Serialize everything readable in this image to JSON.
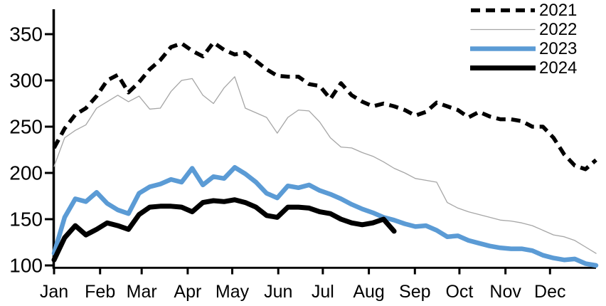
{
  "chart_data": {
    "type": "line",
    "title": "",
    "sampling": "weekly",
    "grid": false,
    "x_axis": {
      "tick_labels": [
        "Jan",
        "Feb",
        "Mar",
        "Apr",
        "May",
        "Jun",
        "Jul",
        "Aug",
        "Sep",
        "Oct",
        "Nov",
        "Dec"
      ],
      "month_start_days": [
        0,
        31,
        59,
        90,
        120,
        151,
        181,
        212,
        243,
        273,
        304,
        334
      ],
      "days_in_year": 365
    },
    "y_axis": {
      "ticks": [
        100,
        150,
        200,
        250,
        300,
        350
      ],
      "tick_labels": [
        "100",
        "150",
        "200",
        "250",
        "300",
        "350"
      ],
      "min": 100,
      "max": 355
    },
    "legend": {
      "position": "top-right",
      "labels": [
        "2021",
        "2022",
        "2023",
        "2024"
      ]
    },
    "colors": {
      "black": "#000000",
      "gray": "#a6a6a6",
      "blue": "#5b9bd5"
    },
    "series": [
      {
        "name": "2021",
        "color": "#000000",
        "line_style": "dashed",
        "stroke_width": 5.5,
        "values": [
          227,
          248,
          263,
          270,
          283,
          300,
          306,
          287,
          298,
          312,
          322,
          336,
          340,
          332,
          326,
          341,
          333,
          328,
          330,
          321,
          312,
          305,
          304,
          304,
          296,
          294,
          280,
          297,
          284,
          277,
          272,
          275,
          272,
          268,
          262,
          266,
          276,
          272,
          268,
          260,
          266,
          261,
          258,
          258,
          256,
          250,
          250,
          238,
          220,
          208,
          204,
          214
        ]
      },
      {
        "name": "2022",
        "color": "#a6a6a6",
        "line_style": "solid",
        "stroke_width": 1.3,
        "values": [
          207,
          238,
          246,
          252,
          270,
          277,
          284,
          277,
          283,
          269,
          270,
          288,
          300,
          302,
          284,
          275,
          292,
          304,
          270,
          265,
          260,
          243,
          260,
          268,
          267,
          255,
          238,
          228,
          227,
          222,
          218,
          212,
          205,
          200,
          194,
          192,
          190,
          168,
          162,
          158,
          155,
          152,
          149,
          148,
          146,
          143,
          138,
          133,
          131,
          127,
          120,
          113
        ]
      },
      {
        "name": "2023",
        "color": "#5b9bd5",
        "line_style": "solid",
        "stroke_width": 6.5,
        "values": [
          113,
          152,
          172,
          169,
          179,
          167,
          160,
          156,
          178,
          185,
          188,
          193,
          190,
          205,
          187,
          196,
          194,
          206,
          199,
          190,
          178,
          173,
          186,
          184,
          187,
          181,
          177,
          172,
          166,
          161,
          157,
          152,
          149,
          145,
          142,
          143,
          138,
          131,
          132,
          127,
          124,
          121,
          119,
          118,
          118,
          116,
          111,
          108,
          106,
          107,
          102,
          100
        ]
      },
      {
        "name": "2024",
        "color": "#000000",
        "line_style": "solid",
        "stroke_width": 7,
        "values": [
          106,
          130,
          143,
          133,
          139,
          146,
          143,
          139,
          155,
          163,
          164,
          164,
          163,
          158,
          168,
          170,
          169,
          171,
          168,
          163,
          154,
          152,
          163,
          163,
          162,
          158,
          156,
          150,
          146,
          144,
          146,
          150,
          137
        ]
      }
    ]
  }
}
